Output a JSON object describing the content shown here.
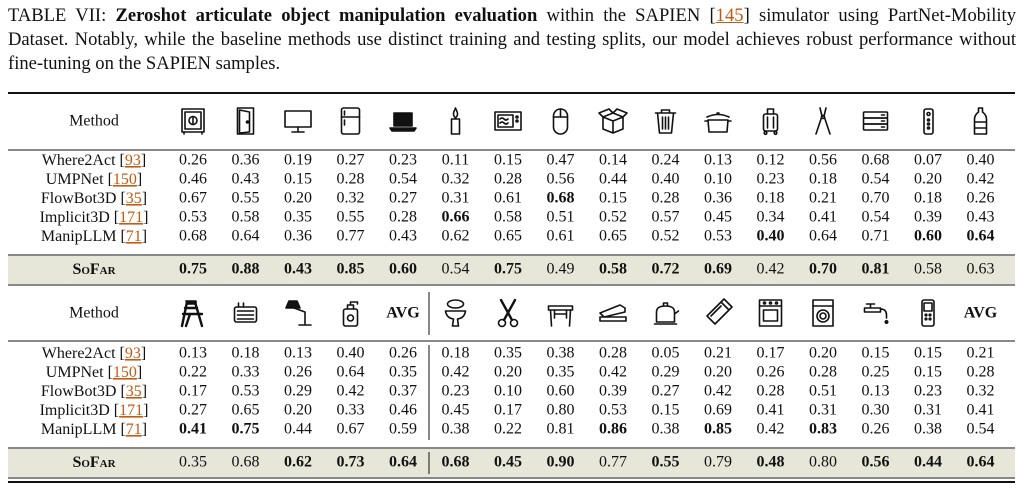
{
  "caption": [
    {
      "text": "TABLE VII: "
    },
    {
      "text": "Zeroshot articulate object manipulation evaluation",
      "bold": true
    },
    {
      "text": " within the SAPIEN ["
    },
    {
      "text": "145",
      "link": true
    },
    {
      "text": "] simulator using PartNet-Mobility Dataset. Notably, while the baseline methods use distinct training and testing splits, our model achieves robust performance without fine-tuning on the SAPIEN samples."
    }
  ],
  "table1": {
    "header": [
      "Method",
      null,
      null,
      null,
      null,
      null,
      null,
      null,
      null,
      null,
      null,
      null,
      null,
      null,
      null,
      null,
      null
    ],
    "rows": [
      {
        "method": [
          "Where2Act [",
          "93",
          "]"
        ],
        "values": [
          "0.26",
          "0.36",
          "0.19",
          "0.27",
          "0.23",
          "0.11",
          "0.15",
          "0.47",
          "0.14",
          "0.24",
          "0.13",
          "0.12",
          "0.56",
          "0.68",
          "0.07",
          "0.40"
        ],
        "bold": []
      },
      {
        "method": [
          "UMPNet [",
          "150",
          "]"
        ],
        "values": [
          "0.46",
          "0.43",
          "0.15",
          "0.28",
          "0.54",
          "0.32",
          "0.28",
          "0.56",
          "0.44",
          "0.40",
          "0.10",
          "0.23",
          "0.18",
          "0.54",
          "0.20",
          "0.42"
        ],
        "bold": []
      },
      {
        "method": [
          "FlowBot3D [",
          "35",
          "]"
        ],
        "values": [
          "0.67",
          "0.55",
          "0.20",
          "0.32",
          "0.27",
          "0.31",
          "0.61",
          "0.68",
          "0.15",
          "0.28",
          "0.36",
          "0.18",
          "0.21",
          "0.70",
          "0.18",
          "0.26"
        ],
        "bold": [
          7
        ]
      },
      {
        "method": [
          "Implicit3D [",
          "171",
          "]"
        ],
        "values": [
          "0.53",
          "0.58",
          "0.35",
          "0.55",
          "0.28",
          "0.66",
          "0.58",
          "0.51",
          "0.52",
          "0.57",
          "0.45",
          "0.34",
          "0.41",
          "0.54",
          "0.39",
          "0.43"
        ],
        "bold": [
          5
        ]
      },
      {
        "method": [
          "ManipLLM  [",
          "71",
          "]"
        ],
        "values": [
          "0.68",
          "0.64",
          "0.36",
          "0.77",
          "0.43",
          "0.62",
          "0.65",
          "0.61",
          "0.65",
          "0.52",
          "0.53",
          "0.40",
          "0.64",
          "0.71",
          "0.60",
          "0.64"
        ],
        "bold": [
          11,
          14,
          15
        ]
      },
      {
        "method": [
          "SoFar"
        ],
        "values": [
          "0.75",
          "0.88",
          "0.43",
          "0.85",
          "0.60",
          "0.54",
          "0.75",
          "0.49",
          "0.58",
          "0.72",
          "0.69",
          "0.42",
          "0.70",
          "0.81",
          "0.58",
          "0.63"
        ],
        "bold": [
          0,
          1,
          2,
          3,
          4,
          6,
          8,
          9,
          10,
          12,
          13
        ],
        "highlight": true
      }
    ]
  },
  "table2": {
    "header": [
      "Method",
      null,
      null,
      null,
      null,
      "AVG",
      null,
      null,
      null,
      null,
      null,
      null,
      null,
      null,
      null,
      null,
      "AVG"
    ],
    "rows": [
      {
        "method": [
          "Where2Act [",
          "93",
          "]"
        ],
        "values": [
          "0.13",
          "0.18",
          "0.13",
          "0.40",
          "0.26",
          "0.18",
          "0.35",
          "0.38",
          "0.28",
          "0.05",
          "0.21",
          "0.17",
          "0.20",
          "0.15",
          "0.15",
          "0.21"
        ],
        "bold": []
      },
      {
        "method": [
          "UMPNet [",
          "150",
          "]"
        ],
        "values": [
          "0.22",
          "0.33",
          "0.26",
          "0.64",
          "0.35",
          "0.42",
          "0.20",
          "0.35",
          "0.42",
          "0.29",
          "0.20",
          "0.26",
          "0.28",
          "0.25",
          "0.15",
          "0.28"
        ],
        "bold": []
      },
      {
        "method": [
          "FlowBot3D [",
          "35",
          "]"
        ],
        "values": [
          "0.17",
          "0.53",
          "0.29",
          "0.42",
          "0.37",
          "0.23",
          "0.10",
          "0.60",
          "0.39",
          "0.27",
          "0.42",
          "0.28",
          "0.51",
          "0.13",
          "0.23",
          "0.32"
        ],
        "bold": []
      },
      {
        "method": [
          "Implicit3D [",
          "171",
          "]"
        ],
        "values": [
          "0.27",
          "0.65",
          "0.20",
          "0.33",
          "0.46",
          "0.45",
          "0.17",
          "0.80",
          "0.53",
          "0.15",
          "0.69",
          "0.41",
          "0.31",
          "0.30",
          "0.31",
          "0.41"
        ],
        "bold": []
      },
      {
        "method": [
          "ManipLLM  [",
          "71",
          "]"
        ],
        "values": [
          "0.41",
          "0.75",
          "0.44",
          "0.67",
          "0.59",
          "0.38",
          "0.22",
          "0.81",
          "0.86",
          "0.38",
          "0.85",
          "0.42",
          "0.83",
          "0.26",
          "0.38",
          "0.54"
        ],
        "bold": [
          0,
          1,
          8,
          10,
          12
        ]
      },
      {
        "method": [
          "SoFar"
        ],
        "values": [
          "0.35",
          "0.68",
          "0.62",
          "0.73",
          "0.64",
          "0.68",
          "0.45",
          "0.90",
          "0.77",
          "0.55",
          "0.79",
          "0.48",
          "0.80",
          "0.56",
          "0.44",
          "0.64"
        ],
        "bold": [
          2,
          3,
          4,
          5,
          6,
          7,
          9,
          11,
          13,
          14,
          15
        ],
        "highlight": true
      }
    ]
  }
}
